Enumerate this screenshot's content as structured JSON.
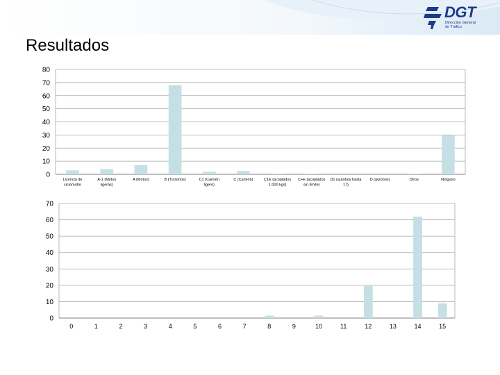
{
  "slide": {
    "title": "Resultados",
    "logo_text": "DGT",
    "logo_sub_line1": "Dirección General",
    "logo_sub_line2": "de Tráfico"
  },
  "colors": {
    "bar": "#c5e0e5",
    "grid": "#a6a6a6",
    "axis": "#7f7f7f",
    "brand": "#1d3a8c",
    "banner": "#dbe9f6"
  },
  "chart_data": [
    {
      "type": "bar",
      "categories": [
        [
          "Licencia de",
          "ciclomotor"
        ],
        [
          "A-1 (Motos",
          "ligeras)"
        ],
        [
          "A (Motos)"
        ],
        [
          "B (Turismos)"
        ],
        [
          "C1 (Camión",
          "ligero)"
        ],
        [
          "C (Camión)"
        ],
        [
          "C1E (acoplados",
          "1.000 kgs)"
        ],
        [
          "C+E (acoplados",
          "sin límite)"
        ],
        [
          "D1 (autobús hasta",
          "17)"
        ],
        [
          "D (autobús)"
        ],
        [
          "Otros"
        ],
        [
          "Ninguno"
        ]
      ],
      "values": [
        3,
        4,
        7,
        68,
        2,
        2.5,
        0.5,
        0.5,
        0,
        0,
        0.5,
        30
      ],
      "ylim": [
        0,
        80
      ],
      "yticks": [
        0,
        10,
        20,
        30,
        40,
        50,
        60,
        70,
        80
      ],
      "grid": true
    },
    {
      "type": "bar",
      "categories": [
        "0",
        "1",
        "2",
        "3",
        "4",
        "5",
        "6",
        "7",
        "8",
        "9",
        "10",
        "11",
        "12",
        "13",
        "14",
        "15"
      ],
      "values": [
        0,
        0,
        0,
        0,
        0,
        0,
        0,
        0,
        1.5,
        0,
        1.5,
        0,
        20,
        0,
        62,
        9
      ],
      "ylim": [
        0,
        70
      ],
      "yticks": [
        0,
        10,
        20,
        30,
        40,
        50,
        60,
        70
      ],
      "grid": true
    }
  ]
}
